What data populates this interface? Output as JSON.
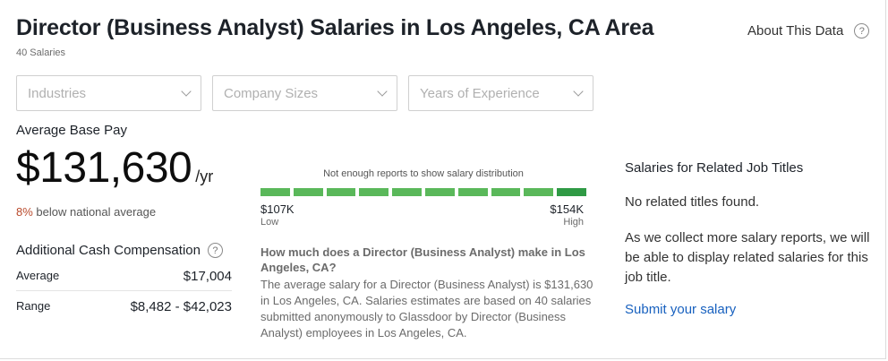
{
  "header": {
    "title": "Director (Business Analyst) Salaries in Los Angeles, CA Area",
    "salary_count": "40 Salaries",
    "about_label": "About This Data",
    "help_glyph": "?"
  },
  "filters": [
    {
      "placeholder": "Industries"
    },
    {
      "placeholder": "Company Sizes"
    },
    {
      "placeholder": "Years of Experience"
    }
  ],
  "base_pay": {
    "label": "Average Base Pay",
    "amount": "$131,630",
    "unit": "/yr",
    "comparison_pct": "8%",
    "comparison_text": " below national average"
  },
  "additional_comp": {
    "label": "Additional Cash Compensation",
    "help_glyph": "?",
    "rows": [
      {
        "label": "Average",
        "value": "$17,004"
      },
      {
        "label": "Range",
        "value": "$8,482 - $42,023"
      }
    ]
  },
  "distribution": {
    "note": "Not enough reports to show salary distribution",
    "low_value": "$107K",
    "low_label": "Low",
    "high_value": "$154K",
    "high_label": "High",
    "segment_count": 10,
    "colors": {
      "bar": "#5ab85a",
      "bar_end": "#2f9a45"
    }
  },
  "faq": {
    "question": "How much does a Director (Business Analyst) make in Los Angeles, CA?",
    "answer": "The average salary for a Director (Business Analyst) is $131,630 in Los Angeles, CA. Salaries estimates are based on 40 salaries submitted anonymously to Glassdoor by Director (Business Analyst) employees in Los Angeles, CA."
  },
  "related": {
    "title": "Salaries for Related Job Titles",
    "none_found": "No related titles found.",
    "message": "As we collect more salary reports, we will be able to display related salaries for this job title.",
    "submit_link": "Submit your salary",
    "colors": {
      "link": "#1861bf"
    }
  }
}
